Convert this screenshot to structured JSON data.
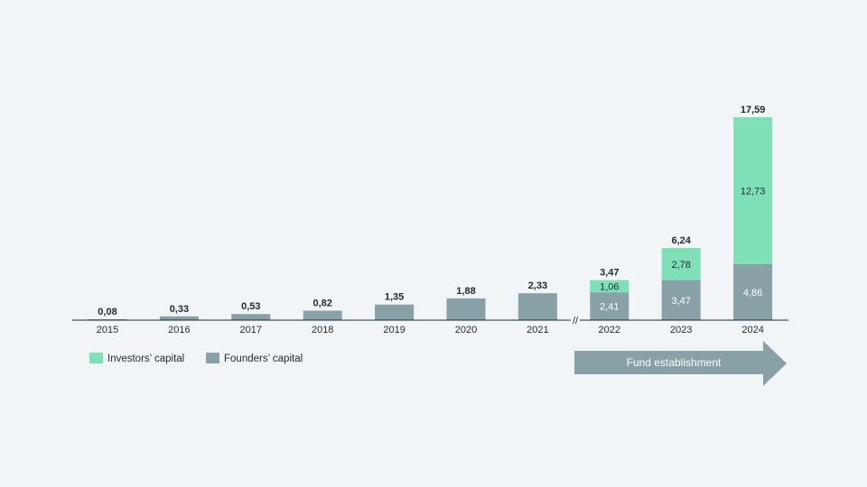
{
  "chart_data": {
    "type": "bar",
    "stacked": true,
    "categories": [
      "2015",
      "2016",
      "2017",
      "2018",
      "2019",
      "2020",
      "2021",
      "2022",
      "2023",
      "2024"
    ],
    "series": [
      {
        "name": "Founders’ capital",
        "color": "#87a1a6",
        "values": [
          0.08,
          0.33,
          0.53,
          0.82,
          1.35,
          1.88,
          2.33,
          2.41,
          3.47,
          4.86
        ],
        "labels": [
          "",
          "",
          "",
          "",
          "",
          "",
          "",
          "2,41",
          "3,47",
          "4,86"
        ]
      },
      {
        "name": "Investors’ capital",
        "color": "#7fe0b8",
        "values": [
          0,
          0,
          0,
          0,
          0,
          0,
          0,
          1.06,
          2.78,
          12.73
        ],
        "labels": [
          "",
          "",
          "",
          "",
          "",
          "",
          "",
          "1,06",
          "2,78",
          "12,73"
        ]
      }
    ],
    "totals": [
      "0,08",
      "0,33",
      "0,53",
      "0,82",
      "1,35",
      "1,88",
      "2,33",
      "3,47",
      "6,24",
      "17,59"
    ],
    "axis_break_symbol": "//",
    "legend_position": "bottom-left",
    "grid": false
  },
  "legend": {
    "investors": "Investors’ capital",
    "founders": "Founders’ capital"
  },
  "annotation": {
    "label": "Fund establishment",
    "color": "#87a1a6"
  }
}
